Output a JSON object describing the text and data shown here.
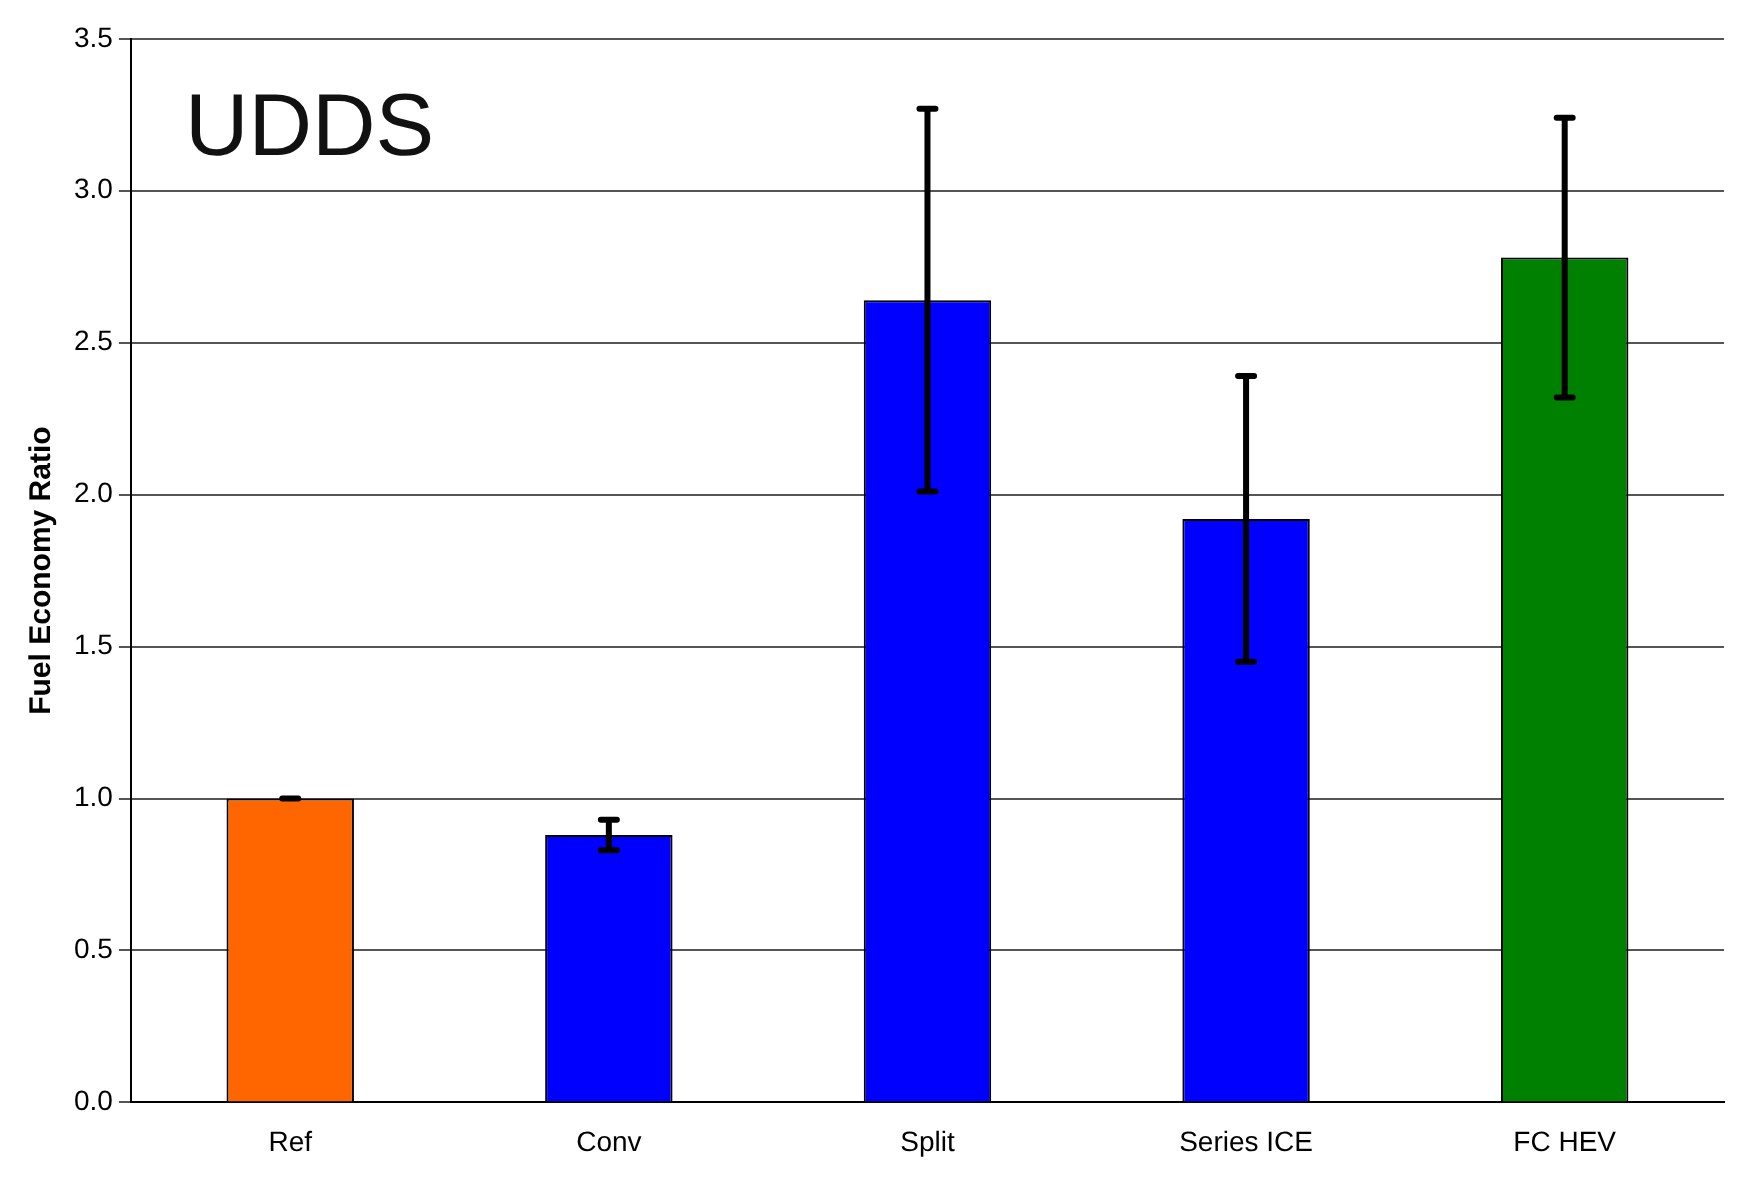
{
  "chart_data": {
    "type": "bar",
    "title": "UDDS",
    "ylabel": "Fuel Economy Ratio",
    "categories": [
      "Ref",
      "Conv",
      "Split",
      "Series ICE",
      "FC HEV"
    ],
    "values": [
      1.0,
      0.88,
      2.64,
      1.92,
      2.78
    ],
    "colors": [
      "#ff6600",
      "#0000ff",
      "#0000ff",
      "#0000ff",
      "#008000"
    ],
    "errors": [
      0,
      [
        0.83,
        0.93
      ],
      [
        2.01,
        3.27
      ],
      [
        1.45,
        2.39
      ],
      [
        2.32,
        3.24
      ]
    ],
    "ylim": [
      0,
      3.5
    ],
    "yticks": [
      {
        "value": 0,
        "label": "0.0"
      },
      {
        "value": 0.5,
        "label": "0.5"
      },
      {
        "value": 1,
        "label": "1.0"
      },
      {
        "value": 1.5,
        "label": "1.5"
      },
      {
        "value": 2,
        "label": "2.0"
      },
      {
        "value": 2.5,
        "label": "2.5"
      },
      {
        "value": 3,
        "label": "3.0"
      },
      {
        "value": 3.5,
        "label": "3.5"
      }
    ],
    "grid": "y",
    "legend": false
  }
}
